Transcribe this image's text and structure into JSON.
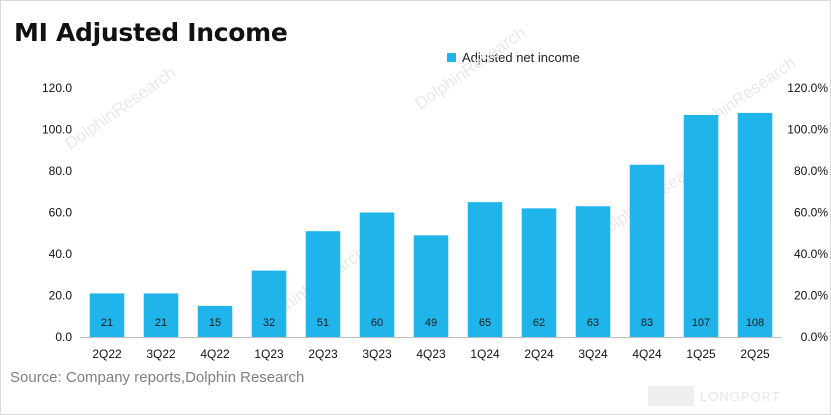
{
  "header": {
    "title": "MI Adjusted Income"
  },
  "footer": {
    "source": "Source: Company reports,Dolphin Research"
  },
  "watermark": {
    "brand": "LONGPORT",
    "text": "DolphinResearch"
  },
  "colors": {
    "bar": "#1fb5ea",
    "axis": "#bfbfbf",
    "text": "#111111"
  },
  "chart_data": {
    "type": "bar",
    "title": "MI Adjusted Income",
    "categories": [
      "2Q22",
      "3Q22",
      "4Q22",
      "1Q23",
      "2Q23",
      "3Q23",
      "4Q23",
      "1Q24",
      "2Q24",
      "3Q24",
      "4Q24",
      "1Q25",
      "2Q25"
    ],
    "series": [
      {
        "name": "Adjusted net income",
        "values": [
          21,
          21,
          15,
          32,
          51,
          60,
          49,
          65,
          62,
          63,
          83,
          107,
          108
        ]
      }
    ],
    "ylim": [
      0,
      120
    ],
    "yticks": [
      "0.0",
      "20.0",
      "40.0",
      "60.0",
      "80.0",
      "100.0",
      "120.0"
    ],
    "y2lim": [
      0,
      120
    ],
    "y2ticks": [
      "0.0%",
      "20.0%",
      "40.0%",
      "60.0%",
      "80.0%",
      "100.0%",
      "120.0%"
    ],
    "grid": false,
    "legend": "top-center"
  }
}
